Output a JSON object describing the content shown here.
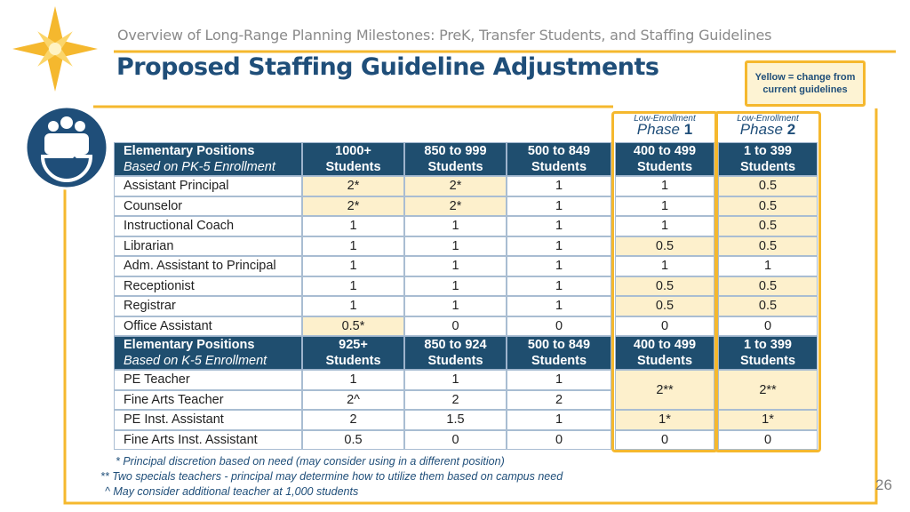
{
  "header": {
    "subtitle": "Overview of Long-Range Planning Milestones: PreK, Transfer Students, and Staffing Guidelines",
    "title": "Proposed Staffing Guideline Adjustments"
  },
  "legend_note": "Yellow = change from current guidelines",
  "phases": [
    {
      "caption": "Low-Enrollment",
      "label": "Phase",
      "number": "1"
    },
    {
      "caption": "Low-Enrollment",
      "label": "Phase",
      "number": "2"
    }
  ],
  "table": {
    "sections": [
      {
        "header": [
          [
            "Elementary Positions",
            "Based on PK-5 Enrollment"
          ],
          [
            "1000+",
            "Students"
          ],
          [
            "850 to 999",
            "Students"
          ],
          [
            "500 to 849",
            "Students"
          ],
          [
            "400 to 499",
            "Students"
          ],
          [
            "1 to 399",
            "Students"
          ]
        ],
        "rows": [
          {
            "label": "Assistant Principal",
            "cells": [
              "2*",
              "2*",
              "1",
              "1",
              "0.5"
            ],
            "highlight": [
              true,
              true,
              false,
              false,
              true
            ]
          },
          {
            "label": "Counselor",
            "cells": [
              "2*",
              "2*",
              "1",
              "1",
              "0.5"
            ],
            "highlight": [
              true,
              true,
              false,
              false,
              true
            ]
          },
          {
            "label": "Instructional Coach",
            "cells": [
              "1",
              "1",
              "1",
              "1",
              "0.5"
            ],
            "highlight": [
              false,
              false,
              false,
              false,
              true
            ]
          },
          {
            "label": "Librarian",
            "cells": [
              "1",
              "1",
              "1",
              "0.5",
              "0.5"
            ],
            "highlight": [
              false,
              false,
              false,
              true,
              true
            ]
          },
          {
            "label": "Adm. Assistant to Principal",
            "cells": [
              "1",
              "1",
              "1",
              "1",
              "1"
            ],
            "highlight": [
              false,
              false,
              false,
              false,
              false
            ]
          },
          {
            "label": "Receptionist",
            "cells": [
              "1",
              "1",
              "1",
              "0.5",
              "0.5"
            ],
            "highlight": [
              false,
              false,
              false,
              true,
              true
            ]
          },
          {
            "label": "Registrar",
            "cells": [
              "1",
              "1",
              "1",
              "0.5",
              "0.5"
            ],
            "highlight": [
              false,
              false,
              false,
              true,
              true
            ]
          },
          {
            "label": "Office Assistant",
            "cells": [
              "0.5*",
              "0",
              "0",
              "0",
              "0"
            ],
            "highlight": [
              true,
              false,
              false,
              false,
              false
            ]
          }
        ]
      },
      {
        "header": [
          [
            "Elementary Positions",
            "Based on K-5 Enrollment"
          ],
          [
            "925+",
            "Students"
          ],
          [
            "850 to 924",
            "Students"
          ],
          [
            "500 to 849",
            "Students"
          ],
          [
            "400 to 499",
            "Students"
          ],
          [
            "1 to 399",
            "Students"
          ]
        ],
        "rows": [
          {
            "label": "PE Teacher",
            "cells": [
              "1",
              "1",
              "1",
              "2**",
              "2**"
            ],
            "highlight": [
              false,
              false,
              false,
              true,
              true
            ],
            "rowspan": [
              1,
              1,
              1,
              2,
              2
            ]
          },
          {
            "label": "Fine Arts Teacher",
            "cells": [
              "2^",
              "2",
              "2",
              null,
              null
            ],
            "highlight": [
              false,
              false,
              false,
              true,
              true
            ]
          },
          {
            "label": "PE Inst. Assistant",
            "cells": [
              "2",
              "1.5",
              "1",
              "1*",
              "1*"
            ],
            "highlight": [
              false,
              false,
              false,
              true,
              true
            ]
          },
          {
            "label": "Fine Arts Inst. Assistant",
            "cells": [
              "0.5",
              "0",
              "0",
              "0",
              "0"
            ],
            "highlight": [
              false,
              false,
              false,
              false,
              false
            ]
          }
        ]
      }
    ]
  },
  "footnotes": [
    "*  Principal discretion based on need (may consider using in a different position)",
    "** Two specials teachers - principal may determine how to utilize them based on campus need",
    "^ May consider additional teacher at 1,000 students"
  ],
  "page_number": "26"
}
